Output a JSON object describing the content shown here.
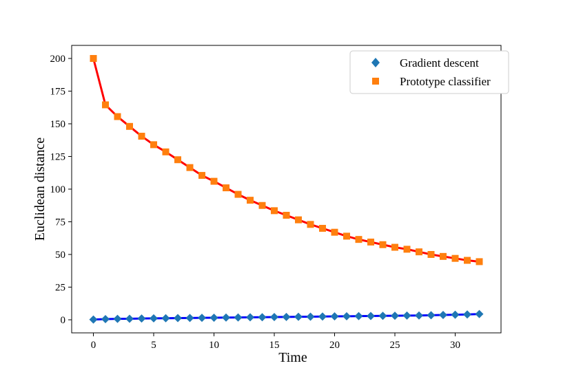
{
  "chart_data": {
    "type": "line",
    "title": "",
    "xlabel": "Time",
    "ylabel": "Euclidean distance",
    "xlim": [
      -1.8,
      33.8
    ],
    "ylim": [
      -10,
      210
    ],
    "xticks": [
      0,
      5,
      10,
      15,
      20,
      25,
      30
    ],
    "yticks": [
      0,
      25,
      50,
      75,
      100,
      125,
      150,
      175,
      200
    ],
    "grid": false,
    "legend_position": "top-right",
    "x": [
      0,
      1,
      2,
      3,
      4,
      5,
      6,
      7,
      8,
      9,
      10,
      11,
      12,
      13,
      14,
      15,
      16,
      17,
      18,
      19,
      20,
      21,
      22,
      23,
      24,
      25,
      26,
      27,
      28,
      29,
      30,
      31,
      32
    ],
    "series": [
      {
        "name": "Gradient descent",
        "marker": "diamond",
        "marker_color": "#1f77b4",
        "line_color": "#0000ff",
        "values": [
          0.2,
          0.5,
          0.7,
          0.8,
          1.0,
          1.1,
          1.2,
          1.3,
          1.4,
          1.5,
          1.6,
          1.7,
          1.8,
          1.9,
          2.0,
          2.1,
          2.2,
          2.3,
          2.4,
          2.5,
          2.6,
          2.7,
          2.8,
          2.9,
          3.0,
          3.1,
          3.2,
          3.3,
          3.5,
          3.7,
          3.9,
          4.1,
          4.4
        ]
      },
      {
        "name": "Prototype classifier",
        "marker": "square",
        "marker_color": "#ff7f0e",
        "line_color": "#ff0000",
        "values": [
          200,
          164.5,
          155.5,
          148,
          140.5,
          134,
          128.5,
          122.5,
          116.5,
          110.5,
          106,
          101,
          96,
          91.5,
          87.5,
          83.5,
          80,
          76.5,
          73,
          70,
          67,
          64,
          61.5,
          59.5,
          57.5,
          55.5,
          54,
          52,
          50,
          48.5,
          47,
          45.5,
          44.5
        ]
      }
    ]
  }
}
